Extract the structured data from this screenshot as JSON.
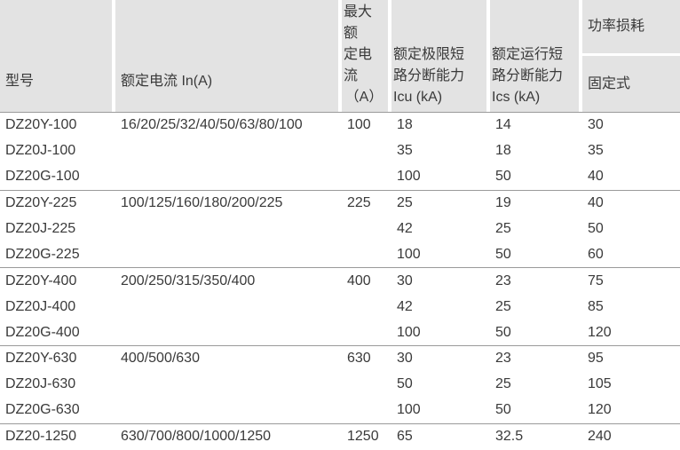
{
  "headers": {
    "model": "型号",
    "rated_current": "额定电流 In(A)",
    "max_current_l1": "最大额",
    "max_current_l2": "定电流",
    "max_current_l3": "（A）",
    "icu_l1": "额定极限短",
    "icu_l2": "路分断能力",
    "icu_l3": "Icu  (kA)",
    "ics_l1": "额定运行短",
    "ics_l2": "路分断能力",
    "ics_l3": "Ics (kA)",
    "power_loss": "功率损耗",
    "fixed": "固定式"
  },
  "rows": [
    {
      "model": "DZ20Y-100",
      "in": "16/20/25/32/40/50/63/80/100",
      "max": "100",
      "icu": "18",
      "ics": "14",
      "loss": "30"
    },
    {
      "model": "DZ20J-100",
      "in": "",
      "max": "",
      "icu": "35",
      "ics": "18",
      "loss": "35"
    },
    {
      "model": "DZ20G-100",
      "in": "",
      "max": "",
      "icu": "100",
      "ics": "50",
      "loss": "40"
    },
    {
      "model": "DZ20Y-225",
      "in": "100/125/160/180/200/225",
      "max": "225",
      "icu": "25",
      "ics": "19",
      "loss": "40"
    },
    {
      "model": "DZ20J-225",
      "in": "",
      "max": "",
      "icu": "42",
      "ics": "25",
      "loss": "50"
    },
    {
      "model": "DZ20G-225",
      "in": "",
      "max": "",
      "icu": "100",
      "ics": "50",
      "loss": "60"
    },
    {
      "model": "DZ20Y-400",
      "in": "200/250/315/350/400",
      "max": "400",
      "icu": "30",
      "ics": "23",
      "loss": "75"
    },
    {
      "model": "DZ20J-400",
      "in": "",
      "max": "",
      "icu": "42",
      "ics": "25",
      "loss": "85"
    },
    {
      "model": "DZ20G-400",
      "in": "",
      "max": "",
      "icu": "100",
      "ics": "50",
      "loss": "120"
    },
    {
      "model": "DZ20Y-630",
      "in": "400/500/630",
      "max": "630",
      "icu": "30",
      "ics": "23",
      "loss": "95"
    },
    {
      "model": "DZ20J-630",
      "in": "",
      "max": "",
      "icu": "50",
      "ics": "25",
      "loss": "105"
    },
    {
      "model": "DZ20G-630",
      "in": "",
      "max": "",
      "icu": "100",
      "ics": "50",
      "loss": "120"
    },
    {
      "model": "DZ20-1250",
      "in": "630/700/800/1000/1250",
      "max": "1250",
      "icu": "65",
      "ics": "32.5",
      "loss": "240"
    }
  ]
}
